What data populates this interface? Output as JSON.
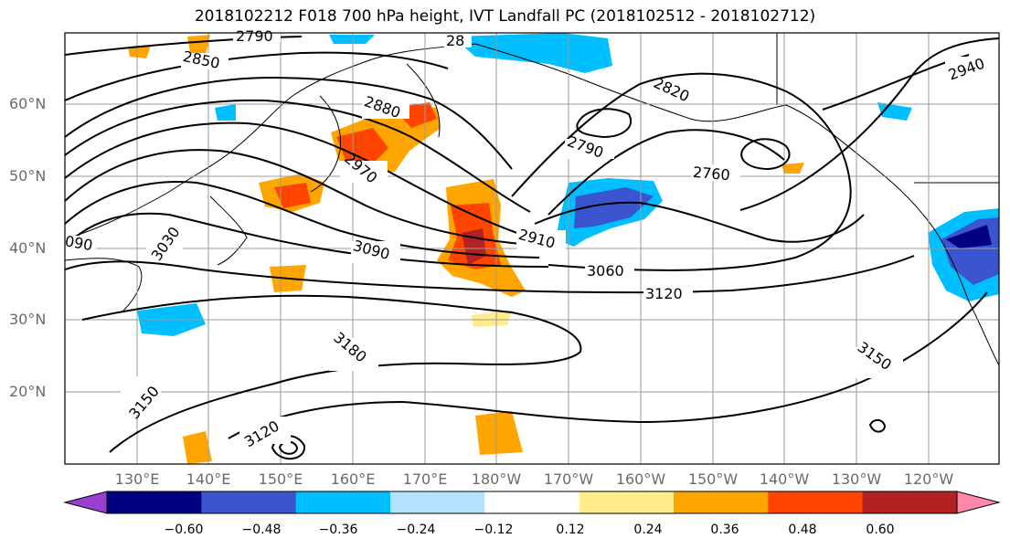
{
  "title": "2018102212 F018 700 hPa height, IVT Landfall PC (2018102512 - 2018102712)",
  "lat_labels": [
    "60°N",
    "50°N",
    "40°N",
    "30°N",
    "20°N"
  ],
  "lon_labels": [
    "130°E",
    "140°E",
    "150°E",
    "160°E",
    "170°E",
    "180°W",
    "170°W",
    "160°W",
    "150°W",
    "140°W",
    "130°W",
    "120°W"
  ],
  "contour_labels": [
    "2790",
    "2850",
    "28",
    "2880",
    "2820",
    "2940",
    "2970",
    "2790",
    "2760",
    "3030",
    "090",
    "3090",
    "2910",
    "3060",
    "3120",
    "3180",
    "3150",
    "3150",
    "3120"
  ],
  "colorbar": {
    "colors": [
      "#9a3fd0",
      "#000080",
      "#3a55cf",
      "#00bfff",
      "#b3e2ff",
      "#ffffff",
      "#ffec8b",
      "#ffa500",
      "#ff4500",
      "#b22222",
      "#ff88aa"
    ],
    "ticks": [
      "−0.60",
      "−0.48",
      "−0.36",
      "−0.24",
      "−0.12",
      "0.12",
      "0.24",
      "0.36",
      "0.48",
      "0.60"
    ]
  },
  "colors": {
    "positive_fill": "#ffa500",
    "strong_positive": "#ff4500",
    "negative_fill": "#00bfff",
    "strong_negative": "#3a55cf"
  }
}
